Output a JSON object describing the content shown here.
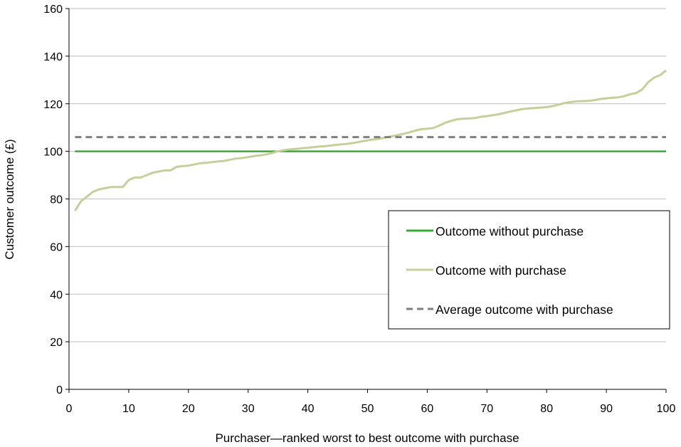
{
  "chart_data": {
    "type": "line",
    "title": "",
    "xlabel": "Purchaser—ranked  worst to best outcome with purchase",
    "ylabel": "Customer outcome (£)",
    "xlim": [
      0,
      100
    ],
    "ylim": [
      0,
      160
    ],
    "xticks": [
      0,
      10,
      20,
      30,
      40,
      50,
      60,
      70,
      80,
      90,
      100
    ],
    "yticks": [
      0,
      20,
      40,
      60,
      80,
      100,
      120,
      140,
      160
    ],
    "grid": "horizontal",
    "legend_position": "center-right",
    "series": [
      {
        "name": "Outcome without purchase",
        "color": "#3aaa35",
        "style": "solid",
        "x": [
          1,
          100
        ],
        "values": [
          100,
          100
        ]
      },
      {
        "name": "Outcome with purchase",
        "color": "#c4d09a",
        "style": "solid",
        "x": [
          1,
          2,
          3,
          4,
          5,
          6,
          7,
          8,
          9,
          10,
          11,
          12,
          13,
          14,
          15,
          16,
          17,
          18,
          19,
          20,
          21,
          22,
          23,
          24,
          25,
          26,
          27,
          28,
          29,
          30,
          31,
          32,
          33,
          34,
          35,
          36,
          37,
          38,
          39,
          40,
          41,
          42,
          43,
          44,
          45,
          46,
          47,
          48,
          49,
          50,
          51,
          52,
          53,
          54,
          55,
          56,
          57,
          58,
          59,
          60,
          61,
          62,
          63,
          64,
          65,
          66,
          67,
          68,
          69,
          70,
          71,
          72,
          73,
          74,
          75,
          76,
          77,
          78,
          79,
          80,
          81,
          82,
          83,
          84,
          85,
          86,
          87,
          88,
          89,
          90,
          91,
          92,
          93,
          94,
          95,
          96,
          97,
          98,
          99,
          100
        ],
        "values": [
          75,
          79,
          81,
          83,
          84,
          84.5,
          85,
          85,
          85,
          88,
          89,
          89,
          90,
          91,
          91.5,
          92,
          92,
          93.5,
          93.8,
          94,
          94.5,
          95,
          95.2,
          95.5,
          95.8,
          96,
          96.5,
          97,
          97.2,
          97.6,
          98,
          98.3,
          98.7,
          99.3,
          100,
          100.5,
          100.8,
          101,
          101.3,
          101.5,
          101.8,
          102,
          102.2,
          102.5,
          102.8,
          103,
          103.3,
          103.7,
          104.2,
          104.6,
          105,
          105.3,
          105.8,
          106.3,
          106.8,
          107.3,
          108,
          108.7,
          109.3,
          109.5,
          109.8,
          110.8,
          112,
          112.8,
          113.5,
          113.7,
          113.8,
          114,
          114.5,
          114.8,
          115.2,
          115.6,
          116.2,
          116.8,
          117.3,
          117.8,
          118,
          118.2,
          118.4,
          118.6,
          119,
          119.6,
          120.3,
          120.7,
          121,
          121.1,
          121.2,
          121.5,
          122,
          122.3,
          122.5,
          122.7,
          123.2,
          124,
          124.5,
          126,
          129,
          131,
          132,
          134
        ]
      },
      {
        "name": "Average outcome with purchase",
        "color": "#7f7f7f",
        "style": "dashed",
        "x": [
          1,
          100
        ],
        "values": [
          106,
          106
        ]
      }
    ]
  }
}
